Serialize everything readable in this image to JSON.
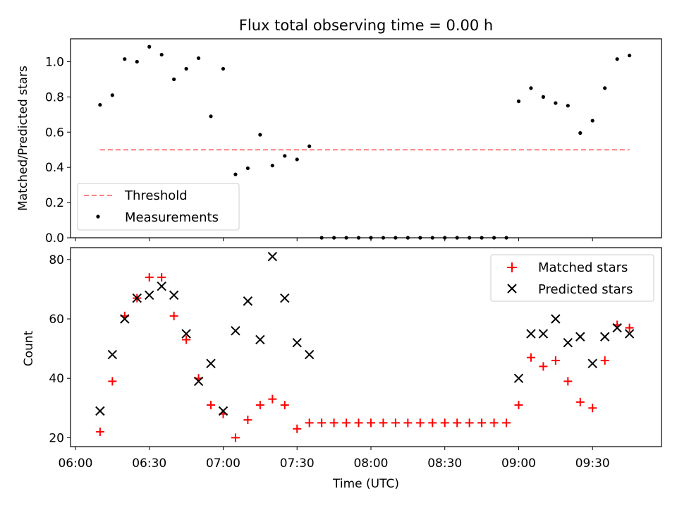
{
  "figure": {
    "title": "Flux total observing time = 0.00 h",
    "background": "#ffffff"
  },
  "chart_data": [
    {
      "type": "scatter",
      "title": "Flux total observing time = 0.00 h",
      "xlabel": "",
      "ylabel": "Matched/Predicted stars",
      "xlim": [
        "05:58",
        "09:58"
      ],
      "ylim": [
        0,
        1.13
      ],
      "y_ticks": [
        0.0,
        0.2,
        0.4,
        0.6,
        0.8,
        1.0
      ],
      "y_tick_labels": [
        "0.0",
        "0.2",
        "0.4",
        "0.6",
        "0.8",
        "1.0"
      ],
      "legend_position": "bottom-left",
      "grid": false,
      "threshold": {
        "name": "Threshold",
        "value": 0.5,
        "x_from": "06:10",
        "x_to": "09:45",
        "color": "#ff8080",
        "style": "dashed"
      },
      "series": [
        {
          "name": "Measurements",
          "color": "#000000",
          "marker": "dot",
          "x": [
            "06:10",
            "06:15",
            "06:20",
            "06:25",
            "06:30",
            "06:35",
            "06:40",
            "06:45",
            "06:50",
            "06:55",
            "07:00",
            "07:05",
            "07:10",
            "07:15",
            "07:20",
            "07:25",
            "07:30",
            "07:35",
            "07:40",
            "07:45",
            "07:50",
            "07:55",
            "08:00",
            "08:05",
            "08:10",
            "08:15",
            "08:20",
            "08:25",
            "08:30",
            "08:35",
            "08:40",
            "08:45",
            "08:50",
            "08:55",
            "09:00",
            "09:05",
            "09:10",
            "09:15",
            "09:20",
            "09:25",
            "09:30",
            "09:35",
            "09:40",
            "09:45"
          ],
          "y": [
            0.755,
            0.81,
            1.015,
            1.0,
            1.085,
            1.04,
            0.9,
            0.96,
            1.02,
            0.69,
            0.96,
            0.36,
            0.395,
            0.585,
            0.41,
            0.465,
            0.445,
            0.52,
            0.0,
            0.0,
            0.0,
            0.0,
            0.0,
            0.0,
            0.0,
            0.0,
            0.0,
            0.0,
            0.0,
            0.0,
            0.0,
            0.0,
            0.0,
            0.0,
            0.775,
            0.85,
            0.8,
            0.765,
            0.75,
            0.595,
            0.665,
            0.85,
            1.015,
            1.035
          ]
        }
      ]
    },
    {
      "type": "scatter",
      "title": "",
      "xlabel": "Time (UTC)",
      "ylabel": "Count",
      "xlim": [
        "05:58",
        "09:58"
      ],
      "ylim": [
        17,
        84
      ],
      "x_ticks": [
        "06:00",
        "06:30",
        "07:00",
        "07:30",
        "08:00",
        "08:30",
        "09:00",
        "09:30"
      ],
      "x_tick_labels": [
        "06:00",
        "06:30",
        "07:00",
        "07:30",
        "08:00",
        "08:30",
        "09:00",
        "09:30"
      ],
      "y_ticks": [
        20,
        40,
        60,
        80
      ],
      "y_tick_labels": [
        "20",
        "40",
        "60",
        "80"
      ],
      "legend_position": "top-right",
      "grid": false,
      "series": [
        {
          "name": "Matched stars",
          "color": "#ff0000",
          "marker": "plus",
          "x": [
            "06:10",
            "06:15",
            "06:20",
            "06:25",
            "06:30",
            "06:35",
            "06:40",
            "06:45",
            "06:50",
            "06:55",
            "07:00",
            "07:05",
            "07:10",
            "07:15",
            "07:20",
            "07:25",
            "07:30",
            "07:35",
            "07:40",
            "07:45",
            "07:50",
            "07:55",
            "08:00",
            "08:05",
            "08:10",
            "08:15",
            "08:20",
            "08:25",
            "08:30",
            "08:35",
            "08:40",
            "08:45",
            "08:50",
            "08:55",
            "09:00",
            "09:05",
            "09:10",
            "09:15",
            "09:20",
            "09:25",
            "09:30",
            "09:35",
            "09:40",
            "09:45"
          ],
          "y": [
            22,
            39,
            61,
            67,
            74,
            74,
            61,
            53,
            40,
            31,
            28,
            20,
            26,
            31,
            33,
            31,
            23,
            25,
            25,
            25,
            25,
            25,
            25,
            25,
            25,
            25,
            25,
            25,
            25,
            25,
            25,
            25,
            25,
            25,
            31,
            47,
            44,
            46,
            39,
            32,
            30,
            46,
            58,
            57
          ]
        },
        {
          "name": "Predicted stars",
          "color": "#000000",
          "marker": "x",
          "x": [
            "06:10",
            "06:15",
            "06:20",
            "06:25",
            "06:30",
            "06:35",
            "06:40",
            "06:45",
            "06:50",
            "06:55",
            "07:00",
            "07:05",
            "07:10",
            "07:15",
            "07:20",
            "07:25",
            "07:30",
            "07:35",
            "09:00",
            "09:05",
            "09:10",
            "09:15",
            "09:20",
            "09:25",
            "09:30",
            "09:35",
            "09:40",
            "09:45"
          ],
          "y": [
            29,
            48,
            60,
            67,
            68,
            71,
            68,
            55,
            39,
            45,
            29,
            56,
            66,
            53,
            81,
            67,
            52,
            48,
            40,
            55,
            55,
            60,
            52,
            54,
            45,
            54,
            57,
            55
          ]
        }
      ]
    }
  ]
}
